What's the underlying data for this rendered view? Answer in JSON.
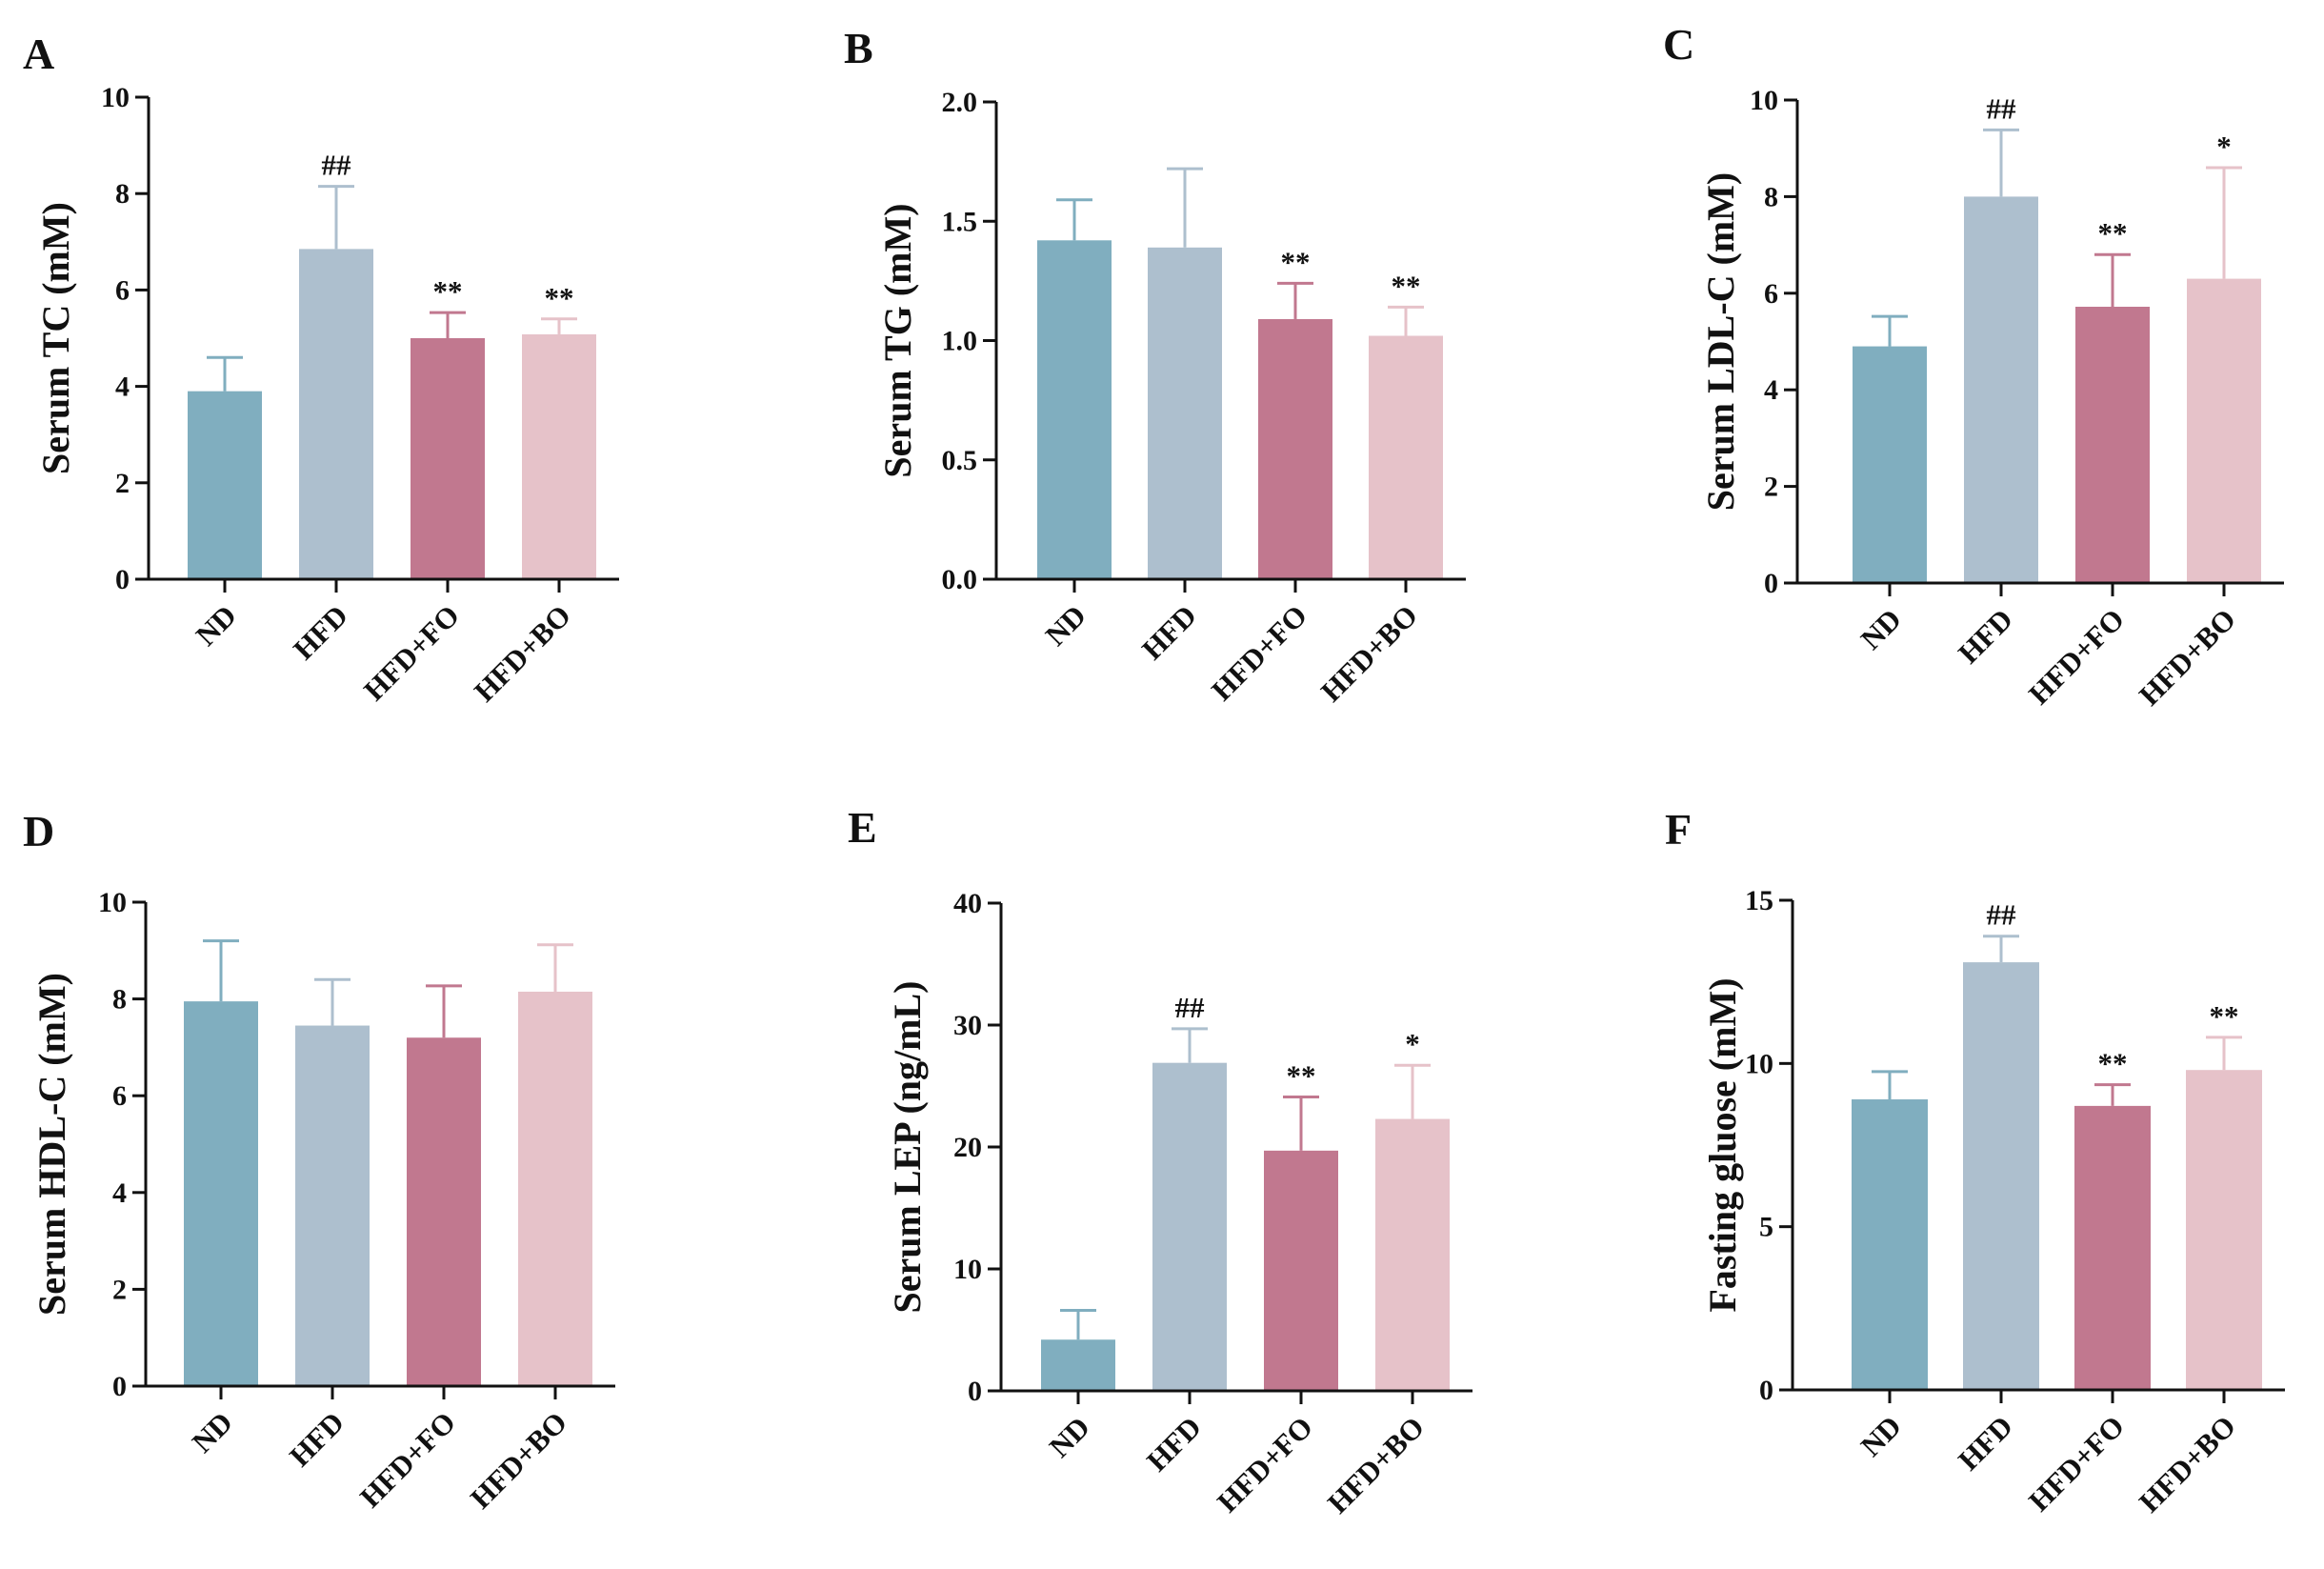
{
  "figure": {
    "groups": [
      "ND",
      "HFD",
      "HFD+FO",
      "HFD+BO"
    ],
    "colors": [
      "#80aebf",
      "#adbfce",
      "#c1788f",
      "#e6c2c9"
    ],
    "axis_color": "#111111"
  },
  "chart_data": [
    {
      "type": "bar",
      "panel": "A",
      "ylabel": "Serum TC (mM)",
      "categories": [
        "ND",
        "HFD",
        "HFD+FO",
        "HFD+BO"
      ],
      "values": [
        3.9,
        6.85,
        5.0,
        5.08
      ],
      "errors": [
        0.7,
        1.3,
        0.53,
        0.32
      ],
      "significance": [
        "",
        "##",
        "**",
        "**"
      ],
      "ylim": [
        0,
        10
      ],
      "yticks": [
        0,
        2,
        4,
        6,
        8,
        10
      ],
      "ytick_labels": [
        "0",
        "2",
        "4",
        "6",
        "8",
        "10"
      ]
    },
    {
      "type": "bar",
      "panel": "B",
      "ylabel": "Serum TG (mM)",
      "categories": [
        "ND",
        "HFD",
        "HFD+FO",
        "HFD+BO"
      ],
      "values": [
        1.42,
        1.39,
        1.09,
        1.02
      ],
      "errors": [
        0.17,
        0.33,
        0.15,
        0.12
      ],
      "significance": [
        "",
        "",
        "**",
        "**"
      ],
      "ylim": [
        0,
        2.0
      ],
      "yticks": [
        0,
        0.5,
        1.0,
        1.5,
        2.0
      ],
      "ytick_labels": [
        "0.0",
        "0.5",
        "1.0",
        "1.5",
        "2.0"
      ]
    },
    {
      "type": "bar",
      "panel": "C",
      "ylabel": "Serum LDL-C (mM)",
      "categories": [
        "ND",
        "HFD",
        "HFD+FO",
        "HFD+BO"
      ],
      "values": [
        4.9,
        8.0,
        5.72,
        6.3
      ],
      "errors": [
        0.62,
        1.38,
        1.08,
        2.3
      ],
      "significance": [
        "",
        "##",
        "**",
        "*"
      ],
      "ylim": [
        0,
        10
      ],
      "yticks": [
        0,
        2,
        4,
        6,
        8,
        10
      ],
      "ytick_labels": [
        "0",
        "2",
        "4",
        "6",
        "8",
        "10"
      ]
    },
    {
      "type": "bar",
      "panel": "D",
      "ylabel": "Serum HDL-C (mM)",
      "categories": [
        "ND",
        "HFD",
        "HFD+FO",
        "HFD+BO"
      ],
      "values": [
        7.95,
        7.45,
        7.2,
        8.15
      ],
      "errors": [
        1.25,
        0.95,
        1.07,
        0.97
      ],
      "significance": [
        "",
        "",
        "",
        ""
      ],
      "ylim": [
        0,
        10
      ],
      "yticks": [
        0,
        2,
        4,
        6,
        8,
        10
      ],
      "ytick_labels": [
        "0",
        "2",
        "4",
        "6",
        "8",
        "10"
      ]
    },
    {
      "type": "bar",
      "panel": "E",
      "ylabel": "Serum LEP (ng/mL)",
      "categories": [
        "ND",
        "HFD",
        "HFD+FO",
        "HFD+BO"
      ],
      "values": [
        4.2,
        26.9,
        19.7,
        22.3
      ],
      "errors": [
        2.4,
        2.8,
        4.4,
        4.4
      ],
      "significance": [
        "",
        "##",
        "**",
        "*"
      ],
      "ylim": [
        0,
        40
      ],
      "yticks": [
        0,
        10,
        20,
        30,
        40
      ],
      "ytick_labels": [
        "0",
        "10",
        "20",
        "30",
        "40"
      ]
    },
    {
      "type": "bar",
      "panel": "F",
      "ylabel": "Fasting gluose (mM)",
      "categories": [
        "ND",
        "HFD",
        "HFD+FO",
        "HFD+BO"
      ],
      "values": [
        8.9,
        13.1,
        8.7,
        9.8
      ],
      "errors": [
        0.85,
        0.8,
        0.65,
        1.0
      ],
      "significance": [
        "",
        "##",
        "**",
        "**"
      ],
      "ylim": [
        0,
        15
      ],
      "yticks": [
        0,
        5,
        10,
        15
      ],
      "ytick_labels": [
        "0",
        "5",
        "10",
        "15"
      ]
    }
  ]
}
